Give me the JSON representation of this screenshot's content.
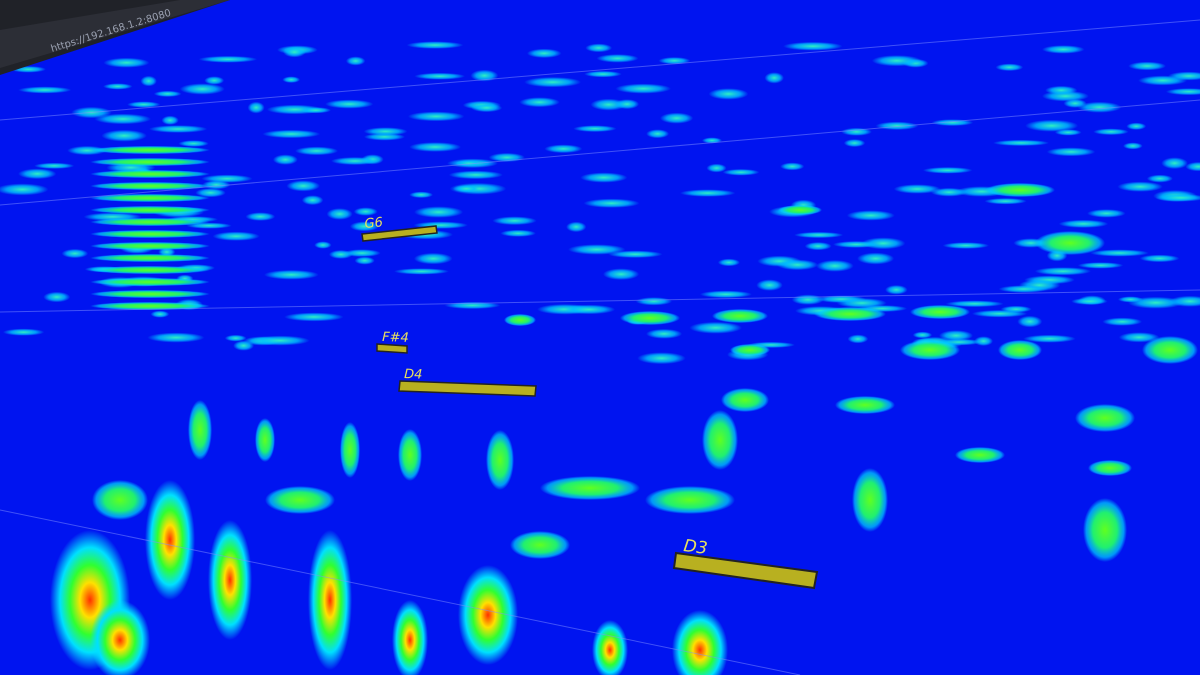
{
  "browser": {
    "url": "https://192.168.1.2:8080"
  },
  "notes": [
    {
      "label": "G6"
    },
    {
      "label": "F#4"
    },
    {
      "label": "D4"
    },
    {
      "label": "D3"
    }
  ]
}
